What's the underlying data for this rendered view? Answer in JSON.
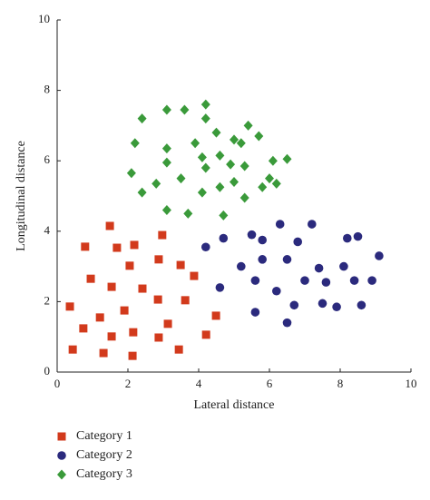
{
  "chart_data": {
    "type": "scatter",
    "x_label": "Lateral distance",
    "y_label": "Longitudinal distance",
    "xlim": [
      0,
      10
    ],
    "ylim": [
      0,
      10
    ],
    "xticks": [
      0,
      2,
      4,
      6,
      8,
      10
    ],
    "yticks": [
      0,
      2,
      4,
      6,
      8,
      10
    ],
    "series": [
      {
        "name": "Category 1",
        "color": "#d23a1c",
        "marker": "square",
        "x": [
          1.49,
          0.79,
          1.69,
          2.18,
          2.97,
          2.05,
          0.95,
          2.87,
          3.49,
          3.87,
          1.54,
          2.41,
          0.36,
          1.9,
          2.85,
          3.62,
          1.21,
          3.13,
          4.49,
          0.74,
          2.15,
          1.54,
          2.87,
          4.21,
          0.44,
          1.31,
          2.13,
          3.44
        ],
        "values": [
          4.15,
          3.56,
          3.53,
          3.61,
          3.89,
          3.02,
          2.65,
          3.2,
          3.04,
          2.73,
          2.42,
          2.37,
          1.86,
          1.75,
          2.06,
          2.04,
          1.55,
          1.37,
          1.6,
          1.24,
          1.13,
          1.01,
          0.98,
          1.06,
          0.64,
          0.54,
          0.46,
          0.64
        ]
      },
      {
        "name": "Category 2",
        "color": "#2b2a7d",
        "marker": "circle",
        "x": [
          4.2,
          4.7,
          5.5,
          5.8,
          6.3,
          6.8,
          7.2,
          8.2,
          8.5,
          5.2,
          5.8,
          6.5,
          7.4,
          8.1,
          9.1,
          4.6,
          5.6,
          6.2,
          7.0,
          7.6,
          8.4,
          8.9,
          6.7,
          7.5,
          7.9,
          8.6,
          5.6,
          6.5
        ],
        "values": [
          3.55,
          3.8,
          3.9,
          3.75,
          4.2,
          3.7,
          4.2,
          3.8,
          3.85,
          3.0,
          3.2,
          3.2,
          2.95,
          3.0,
          3.3,
          2.4,
          2.6,
          2.3,
          2.6,
          2.55,
          2.6,
          2.6,
          1.9,
          1.95,
          1.85,
          1.9,
          1.7,
          1.4
        ]
      },
      {
        "name": "Category 3",
        "color": "#3a9a3a",
        "marker": "diamond",
        "x": [
          4.2,
          3.1,
          3.6,
          2.4,
          4.2,
          5.4,
          4.5,
          5.0,
          5.7,
          2.2,
          3.1,
          3.9,
          4.1,
          4.6,
          5.2,
          6.1,
          3.1,
          4.2,
          4.9,
          5.3,
          6.5,
          2.1,
          3.5,
          2.8,
          4.6,
          5.0,
          6.0,
          6.2,
          2.4,
          4.1,
          5.3,
          3.1,
          3.7,
          4.7,
          5.8
        ],
        "values": [
          7.6,
          7.45,
          7.45,
          7.2,
          7.2,
          7.0,
          6.8,
          6.6,
          6.7,
          6.5,
          6.35,
          6.5,
          6.1,
          6.15,
          6.5,
          6.0,
          5.95,
          5.8,
          5.9,
          5.85,
          6.05,
          5.65,
          5.5,
          5.35,
          5.25,
          5.4,
          5.5,
          5.35,
          5.1,
          5.1,
          4.95,
          4.6,
          4.5,
          4.45,
          5.25
        ]
      }
    ]
  }
}
